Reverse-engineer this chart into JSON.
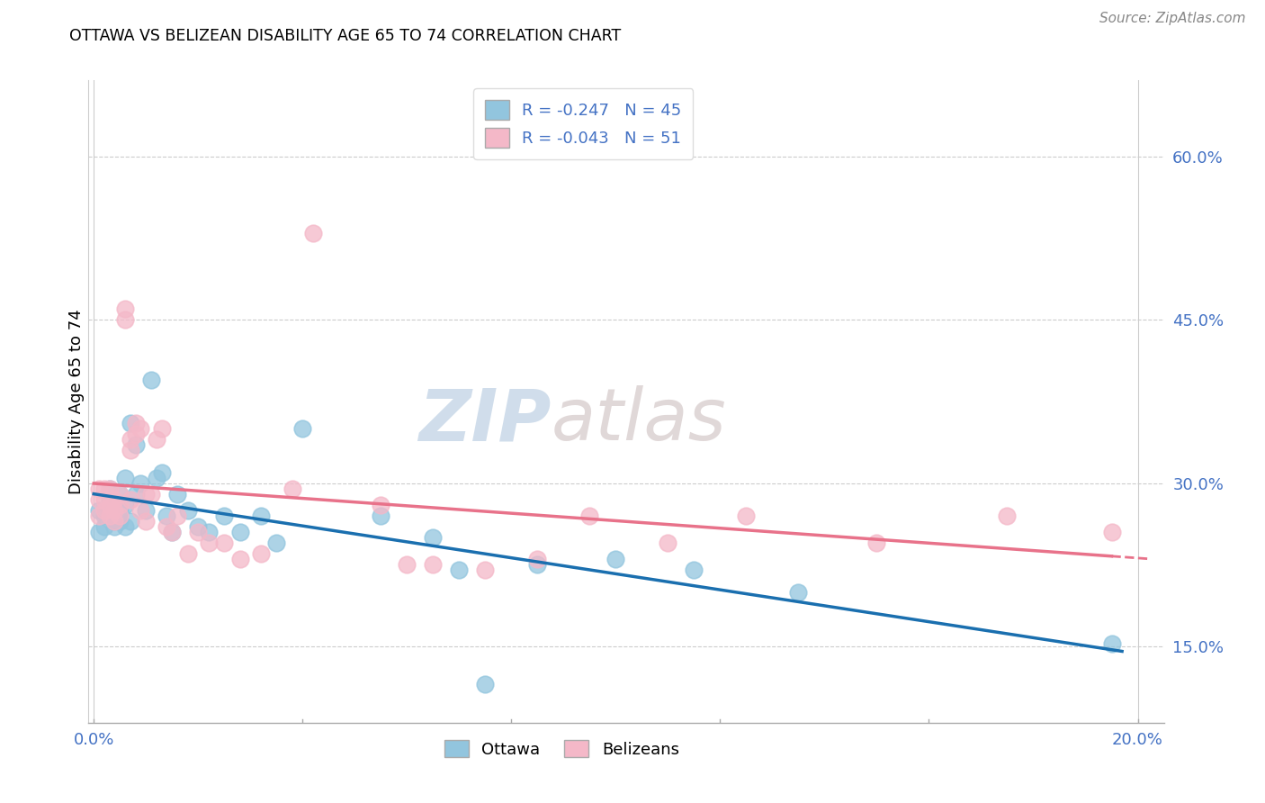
{
  "title": "OTTAWA VS BELIZEAN DISABILITY AGE 65 TO 74 CORRELATION CHART",
  "source": "Source: ZipAtlas.com",
  "ylabel": "Disability Age 65 to 74",
  "xlim": [
    -0.001,
    0.205
  ],
  "ylim": [
    0.08,
    0.67
  ],
  "yticks": [
    0.15,
    0.3,
    0.45,
    0.6
  ],
  "ytick_labels": [
    "15.0%",
    "30.0%",
    "45.0%",
    "60.0%"
  ],
  "xticks": [
    0.0,
    0.04,
    0.08,
    0.12,
    0.16,
    0.2
  ],
  "xtick_labels": [
    "0.0%",
    "",
    "",
    "",
    "",
    "20.0%"
  ],
  "legend_labels": [
    "Ottawa",
    "Belizeans"
  ],
  "R_ottawa": -0.247,
  "N_ottawa": 45,
  "R_belizean": -0.043,
  "N_belizean": 51,
  "ottawa_color": "#92c5de",
  "belizean_color": "#f4b8c8",
  "ottawa_line_color": "#1a6faf",
  "belizean_line_color": "#e8728a",
  "watermark": "ZIPatlas",
  "ottawa_x": [
    0.001,
    0.001,
    0.002,
    0.002,
    0.003,
    0.003,
    0.003,
    0.004,
    0.004,
    0.004,
    0.005,
    0.005,
    0.005,
    0.006,
    0.006,
    0.006,
    0.007,
    0.007,
    0.008,
    0.008,
    0.009,
    0.01,
    0.011,
    0.012,
    0.013,
    0.014,
    0.015,
    0.016,
    0.018,
    0.02,
    0.022,
    0.025,
    0.028,
    0.032,
    0.035,
    0.04,
    0.055,
    0.065,
    0.07,
    0.075,
    0.085,
    0.1,
    0.115,
    0.135,
    0.195
  ],
  "ottawa_y": [
    0.275,
    0.255,
    0.27,
    0.26,
    0.275,
    0.285,
    0.295,
    0.275,
    0.265,
    0.26,
    0.275,
    0.265,
    0.29,
    0.305,
    0.28,
    0.26,
    0.265,
    0.355,
    0.335,
    0.29,
    0.3,
    0.275,
    0.395,
    0.305,
    0.31,
    0.27,
    0.255,
    0.29,
    0.275,
    0.26,
    0.255,
    0.27,
    0.255,
    0.27,
    0.245,
    0.35,
    0.27,
    0.25,
    0.22,
    0.115,
    0.225,
    0.23,
    0.22,
    0.2,
    0.153
  ],
  "belizean_x": [
    0.001,
    0.001,
    0.001,
    0.002,
    0.002,
    0.002,
    0.003,
    0.003,
    0.003,
    0.004,
    0.004,
    0.004,
    0.005,
    0.005,
    0.005,
    0.006,
    0.006,
    0.007,
    0.007,
    0.007,
    0.008,
    0.008,
    0.009,
    0.009,
    0.01,
    0.01,
    0.011,
    0.012,
    0.013,
    0.014,
    0.015,
    0.016,
    0.018,
    0.02,
    0.022,
    0.025,
    0.028,
    0.032,
    0.038,
    0.042,
    0.055,
    0.06,
    0.065,
    0.075,
    0.085,
    0.095,
    0.11,
    0.125,
    0.15,
    0.175,
    0.195
  ],
  "belizean_y": [
    0.285,
    0.295,
    0.27,
    0.275,
    0.285,
    0.295,
    0.27,
    0.28,
    0.295,
    0.275,
    0.285,
    0.265,
    0.28,
    0.29,
    0.27,
    0.45,
    0.46,
    0.34,
    0.33,
    0.285,
    0.355,
    0.345,
    0.35,
    0.275,
    0.29,
    0.265,
    0.29,
    0.34,
    0.35,
    0.26,
    0.255,
    0.27,
    0.235,
    0.255,
    0.245,
    0.245,
    0.23,
    0.235,
    0.295,
    0.53,
    0.28,
    0.225,
    0.225,
    0.22,
    0.23,
    0.27,
    0.245,
    0.27,
    0.245,
    0.27,
    0.255
  ]
}
